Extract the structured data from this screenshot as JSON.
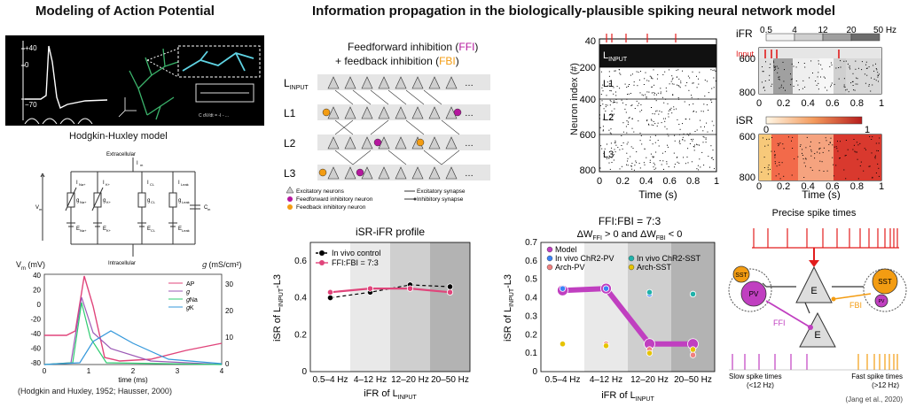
{
  "left": {
    "title": "Modeling of Action Potential",
    "ap_ticks": [
      "+40",
      "0",
      "−70"
    ],
    "hh_title": "Hodgkin-Huxley model",
    "circuit": {
      "extracellular": "Extracellular",
      "intracellular": "Intracellular",
      "im": "I",
      "vm": "V",
      "cm": "C",
      "branches": [
        {
          "current": "I",
          "sub": "Na+",
          "g": "g",
          "e": "E"
        },
        {
          "current": "I",
          "sub": "K+",
          "g": "g",
          "e": "E"
        },
        {
          "current": "I",
          "sub": "Cl-",
          "g": "g",
          "e": "E"
        },
        {
          "current": "I",
          "sub": "Leak",
          "g": "g",
          "e": "E"
        }
      ]
    },
    "ap_plot": {
      "ylabel_left": "V",
      "ylabel_left_sub": "m",
      "ylabel_left_unit": "(mV)",
      "ylabel_right": "𝑔 (mS/cm²)",
      "xlabel": "time (ms)",
      "yticks_left": [
        "40",
        "20",
        "0",
        "-20",
        "-40",
        "-60",
        "-80"
      ],
      "yticks_right": [
        "30",
        "20",
        "10",
        "0"
      ],
      "xticks": [
        "0",
        "1",
        "2",
        "3",
        "4"
      ],
      "legend": [
        "AP",
        "𝑔",
        "𝑔Na",
        "𝑔K"
      ],
      "colors": [
        "#e0457b",
        "#9b59b6",
        "#2ecc71",
        "#3498db"
      ]
    },
    "citation": "(Hodgkin and Huxley, 1952; Hausser, 2000)"
  },
  "main": {
    "title": "Information propagation in the biologically-plausible spiking neural network model"
  },
  "network": {
    "title_l1_a": "Feedforward inhibition (",
    "title_l1_ffi": "FFI",
    "title_l1_b": ")",
    "title_l2_a": "+ feedback  inhibition (",
    "title_l2_fbi": "FBI",
    "title_l2_b": ")",
    "layers": [
      "L",
      "L1",
      "L2",
      "L3"
    ],
    "layer_input_sub": "INPUT",
    "legend": {
      "exc": "Excitatory neurons",
      "ffi": "Feedforward inhibitory neuron",
      "fbi": "Feedback inhibitory neuron",
      "exc_syn": "Excitatory synapse",
      "inh_syn": "Inhibitory synapse"
    },
    "colors": {
      "ffi": "#b5179e",
      "fbi": "#f39c12"
    }
  },
  "raster": {
    "ylabel": "Neuron index (#)",
    "xlabel": "Time (s)",
    "yticks": [
      "40",
      "200",
      "400",
      "600",
      "800"
    ],
    "xticks": [
      "0",
      "0.2",
      "0.4",
      "0.6",
      "0.8",
      "1"
    ],
    "layers": [
      "L",
      "L1",
      "L2",
      "L3"
    ],
    "layer_input_sub": "INPUT"
  },
  "ifr_panel": {
    "title": "iFR",
    "scale_ticks": [
      "0.5",
      "4",
      "12",
      "20",
      "50 Hz"
    ],
    "input_label": "Input",
    "yticks": [
      "600",
      "800"
    ],
    "xticks": [
      "0",
      "0.2",
      "0.4",
      "0.6",
      "0.8",
      "1"
    ]
  },
  "isr_panel": {
    "title": "iSR",
    "scale_ticks": [
      "0",
      "1"
    ],
    "yticks": [
      "600",
      "800"
    ],
    "xticks": [
      "0",
      "0.2",
      "0.4",
      "0.6",
      "0.8",
      "1"
    ],
    "xlabel": "Time (s)"
  },
  "spike_diagram": {
    "title": "Precise spike times",
    "sst": "SST",
    "pv": "PV",
    "e": "E",
    "ffi": "FFI",
    "fbi": "FBI",
    "slow": "Slow spike times",
    "slow_sub": "(<12 Hz)",
    "fast": "Fast spike times",
    "fast_sub": "(>12 Hz)",
    "citation": "(Jang et al., 2020)"
  },
  "chart_data": [
    {
      "type": "line",
      "title": "iSR-iFR profile",
      "xlabel": "iFR of L",
      "xlabel_sub": "INPUT",
      "ylabel": "iSR of L",
      "ylabel_sub": "INPUT",
      "ylabel_suffix": "-L3",
      "categories": [
        "0.5–4 Hz",
        "4–12 Hz",
        "12–20 Hz",
        "20–50 Hz"
      ],
      "ylim": [
        0,
        0.7
      ],
      "yticks": [
        "0",
        "0.2",
        "0.4",
        "0.6"
      ],
      "series": [
        {
          "name": "In vivo control",
          "values": [
            0.4,
            0.43,
            0.47,
            0.46
          ],
          "color": "#000000",
          "dashed": true
        },
        {
          "name": "FFI:FBI = 7:3",
          "values": [
            0.43,
            0.45,
            0.45,
            0.43
          ],
          "color": "#e0457b",
          "dashed": false
        }
      ],
      "legend": "top-left"
    },
    {
      "type": "line",
      "title": "FFI:FBI = 7:3",
      "subtitle_a": "ΔW",
      "subtitle_ffi": "FFI",
      "subtitle_b": " > 0 and ΔW",
      "subtitle_fbi": "FBI",
      "subtitle_c": " < 0",
      "xlabel": "iFR of L",
      "xlabel_sub": "INPUT",
      "ylabel": "iSR of L",
      "ylabel_sub": "INPUT",
      "ylabel_suffix": "-L3",
      "categories": [
        "0.5–4 Hz",
        "4–12 Hz",
        "12–20 Hz",
        "20–50 Hz"
      ],
      "ylim": [
        0,
        0.7
      ],
      "yticks": [
        "0",
        "0.1",
        "0.2",
        "0.3",
        "0.4",
        "0.5",
        "0.6",
        "0.7"
      ],
      "series": [
        {
          "name": "Model",
          "values": [
            0.44,
            0.45,
            0.15,
            0.15
          ],
          "color": "#c03fc0"
        },
        {
          "name": "In vivo ChR2-PV",
          "values": [
            0.45,
            0.45,
            0.42,
            0.42
          ],
          "color": "#3b82f6"
        },
        {
          "name": "In vivo ChR2-SST",
          "values": [
            0.15,
            0.15,
            0.43,
            0.42
          ],
          "color": "#20b2aa"
        },
        {
          "name": "Arch-PV",
          "values": [
            0.15,
            0.15,
            0.12,
            0.09
          ],
          "color": "#f08080"
        },
        {
          "name": "Arch-SST",
          "values": [
            0.15,
            0.14,
            0.1,
            0.12
          ],
          "color": "#e6c300"
        }
      ],
      "legend": "top-left"
    }
  ]
}
